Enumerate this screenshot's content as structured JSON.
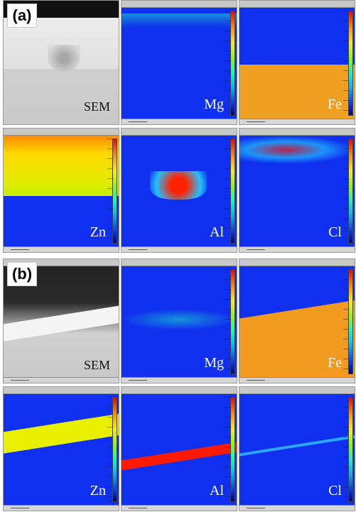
{
  "panels": [
    {
      "tag": "(a)",
      "tiles": [
        {
          "label": "SEM",
          "kind": "sem"
        },
        {
          "label": "Mg",
          "kind": "map"
        },
        {
          "label": "Fe",
          "kind": "map"
        },
        {
          "label": "Zn",
          "kind": "map"
        },
        {
          "label": "Al",
          "kind": "map"
        },
        {
          "label": "Cl",
          "kind": "map"
        }
      ]
    },
    {
      "tag": "(b)",
      "tiles": [
        {
          "label": "SEM",
          "kind": "sem"
        },
        {
          "label": "Mg",
          "kind": "map"
        },
        {
          "label": "Fe",
          "kind": "map"
        },
        {
          "label": "Zn",
          "kind": "map"
        },
        {
          "label": "Al",
          "kind": "map"
        },
        {
          "label": "Cl",
          "kind": "map"
        }
      ]
    }
  ],
  "colors": {
    "map_background": "#1030f0",
    "sem_substrate": "#c9c9c9",
    "label_on_map": "#ffffff",
    "label_on_sem": "#111111"
  }
}
